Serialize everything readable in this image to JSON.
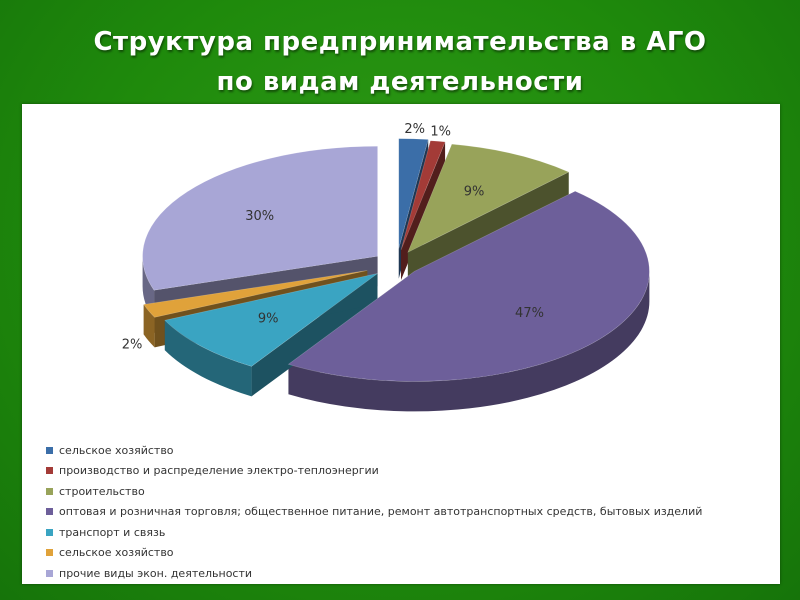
{
  "title": {
    "line1": "Структура предпринимательства в АГО",
    "line2": "по видам деятельности"
  },
  "chart_data": {
    "type": "pie",
    "style": "3d-exploded",
    "legend_position": "bottom",
    "slices": [
      {
        "label": "сельское хозяйство",
        "value": 2,
        "value_label": "2%",
        "color": "#3b6ea8"
      },
      {
        "label": "производство и распределение электро-теплоэнергии",
        "value": 1,
        "value_label": "1%",
        "color": "#a33b37"
      },
      {
        "label": "строительство",
        "value": 9,
        "value_label": "9%",
        "color": "#98a35a"
      },
      {
        "label": "оптовая и розничная торговля; общественное питание, ремонт автотранспортных средств, бытовых изделий",
        "value": 47,
        "value_label": "47%",
        "color": "#6d5f9a"
      },
      {
        "label": "транспорт и связь",
        "value": 9,
        "value_label": "9%",
        "color": "#3aa4c2"
      },
      {
        "label": "сельское хозяйство",
        "value": 2,
        "value_label": "2%",
        "color": "#e0a23a"
      },
      {
        "label": "прочие виды экон. деятельности",
        "value": 30,
        "value_label": "30%",
        "color": "#a8a6d6"
      }
    ]
  }
}
